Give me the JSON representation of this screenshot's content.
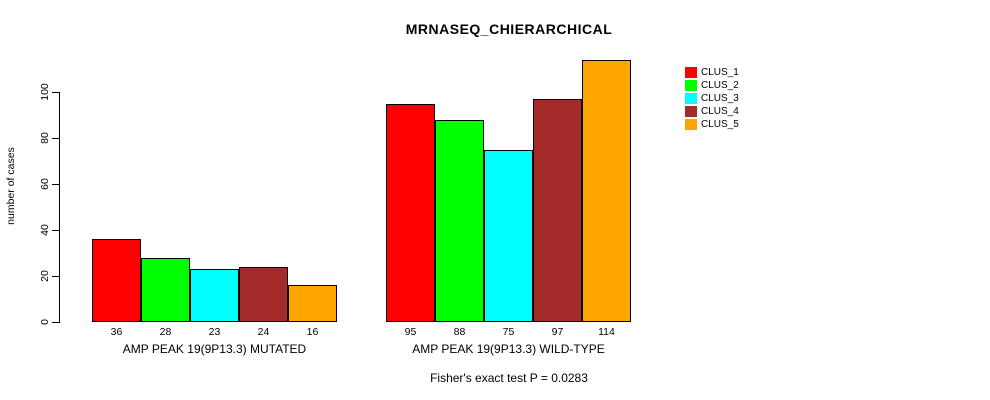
{
  "title": "MRNASEQ_CHIERARCHICAL",
  "footnote": "Fisher's exact test P = 0.0283",
  "chart_data": {
    "type": "bar",
    "title": "MRNASEQ_CHIERARCHICAL",
    "xlabel": "",
    "ylabel": "number of cases",
    "ylim": [
      0,
      115
    ],
    "yticks": [
      0,
      20,
      40,
      60,
      80,
      100
    ],
    "grid": false,
    "legend_position": "top-right",
    "bar_value_labels_shown": true,
    "categories": [
      "AMP PEAK 19(9P13.3) MUTATED",
      "AMP PEAK 19(9P13.3) WILD-TYPE"
    ],
    "series": [
      {
        "name": "CLUS_1",
        "color": "#FF0000",
        "values": [
          36,
          95
        ]
      },
      {
        "name": "CLUS_2",
        "color": "#00FF00",
        "values": [
          28,
          88
        ]
      },
      {
        "name": "CLUS_3",
        "color": "#00FFFF",
        "values": [
          23,
          75
        ]
      },
      {
        "name": "CLUS_4",
        "color": "#A52A2A",
        "values": [
          24,
          97
        ]
      },
      {
        "name": "CLUS_5",
        "color": "#FFA500",
        "values": [
          16,
          114
        ]
      }
    ],
    "annotation": "Fisher's exact test P = 0.0283"
  }
}
